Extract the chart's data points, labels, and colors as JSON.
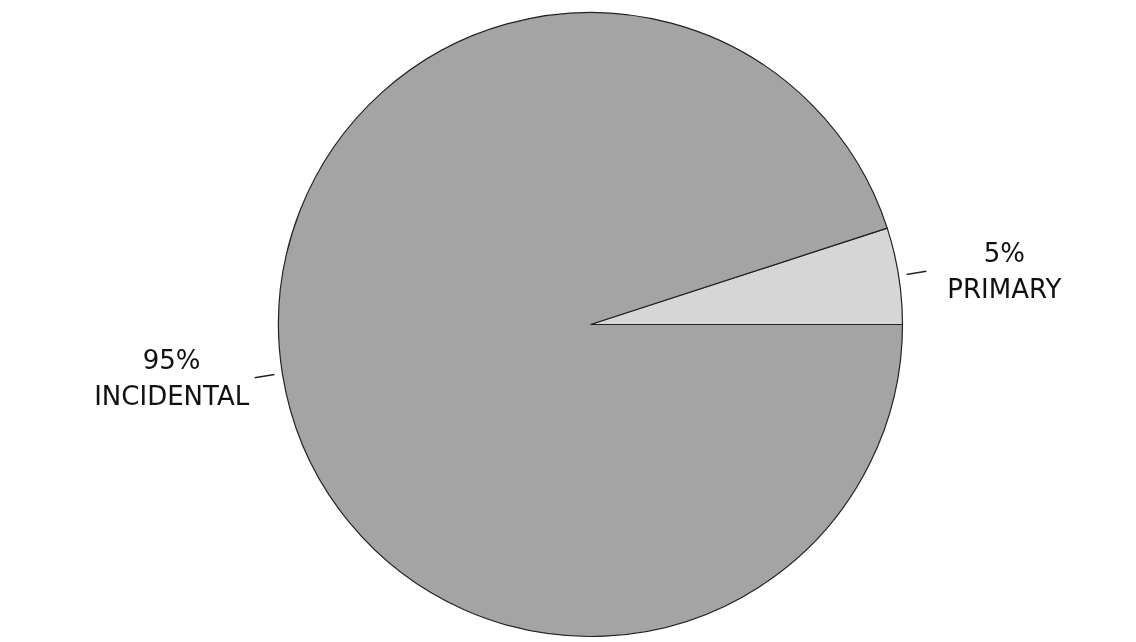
{
  "chart_data": {
    "type": "pie",
    "categories": [
      "INCIDENTAL",
      "PRIMARY"
    ],
    "values": [
      95,
      5
    ],
    "value_labels": [
      "95%",
      "5%"
    ],
    "colors": [
      "#a4a4a4",
      "#d6d6d6"
    ]
  }
}
